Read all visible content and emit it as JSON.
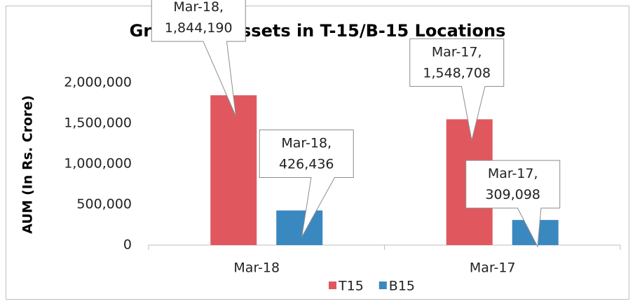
{
  "chart_data": {
    "type": "bar",
    "title": "Growth in Assets in T-15/B-15 Locations",
    "y_label": "AUM (In Rs. Crore)",
    "categories": [
      "Mar-18",
      "Mar-17"
    ],
    "series": [
      {
        "name": "T15",
        "color": "#e0585e",
        "values": [
          1844190,
          1548708
        ],
        "value_labels": [
          "Mar-18, 1,844,190",
          "Mar-17, 1,548,708"
        ]
      },
      {
        "name": "B15",
        "color": "#3a88c0",
        "values": [
          426436,
          309098
        ],
        "value_labels": [
          "Mar-18, 426,436",
          "Mar-17, 309,098"
        ]
      }
    ],
    "ylim": [
      0,
      2000000
    ],
    "yticks": [
      0,
      {
        "value": 500000,
        "label": "500,000"
      },
      {
        "value": 1000000,
        "label": "1,000,000"
      },
      {
        "value": 1500000,
        "label": "1,500,000"
      },
      {
        "value": 2000000,
        "label": "2,000,000"
      }
    ],
    "grid": false,
    "legend": "bottom"
  }
}
